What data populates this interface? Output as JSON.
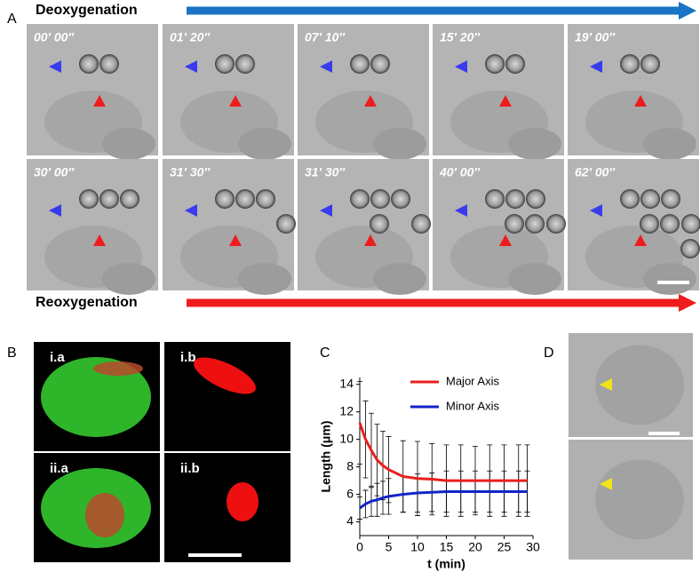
{
  "panel_a": {
    "label": "A",
    "top_arrow": "Deoxygenation",
    "bottom_arrow": "Reoxygenation",
    "timestamps": [
      "00′ 00″",
      "01′ 20″",
      "07′ 10″",
      "15′ 20″",
      "19′ 00″",
      "30′ 00″",
      "31′ 30″",
      "31′ 30″",
      "40′ 00″",
      "62′ 00″"
    ]
  },
  "panel_b": {
    "label": "B",
    "tiles": [
      "i.a",
      "i.b",
      "ii.a",
      "ii.b"
    ]
  },
  "chart_data": {
    "type": "line",
    "panel_label": "C",
    "xlabel": "t (min)",
    "ylabel": "Length (μm)",
    "x": [
      0,
      1,
      2,
      3,
      4,
      5,
      7.5,
      10,
      12.5,
      15,
      17.5,
      20,
      22.5,
      25,
      27.5,
      29
    ],
    "series": [
      {
        "name": "Major Axis",
        "color": "#e8201e",
        "values": [
          11.2,
          10.0,
          9.2,
          8.5,
          8.1,
          7.8,
          7.3,
          7.15,
          7.1,
          7.0,
          7.0,
          7.0,
          7.0,
          7.0,
          7.0,
          7.0
        ],
        "errors": [
          3.0,
          2.8,
          2.7,
          2.6,
          2.5,
          2.4,
          2.6,
          2.7,
          2.6,
          2.6,
          2.6,
          2.5,
          2.6,
          2.6,
          2.6,
          2.6
        ]
      },
      {
        "name": "Minor Axis",
        "color": "#1424c8",
        "values": [
          5.0,
          5.3,
          5.5,
          5.6,
          5.75,
          5.85,
          6.0,
          6.1,
          6.15,
          6.2,
          6.2,
          6.2,
          6.2,
          6.2,
          6.2,
          6.2
        ],
        "errors": [
          0.8,
          1.0,
          1.1,
          1.2,
          1.2,
          1.3,
          1.3,
          1.4,
          1.4,
          1.5,
          1.5,
          1.5,
          1.5,
          1.5,
          1.5,
          1.5
        ]
      }
    ],
    "xlim": [
      0,
      30
    ],
    "xticks": [
      0,
      5,
      10,
      15,
      20,
      25,
      30
    ],
    "ylim": [
      3,
      14.5
    ],
    "yticks": [
      4,
      6,
      8,
      10,
      12,
      14
    ],
    "legend": "top-right"
  },
  "panel_d": {
    "label": "D"
  }
}
